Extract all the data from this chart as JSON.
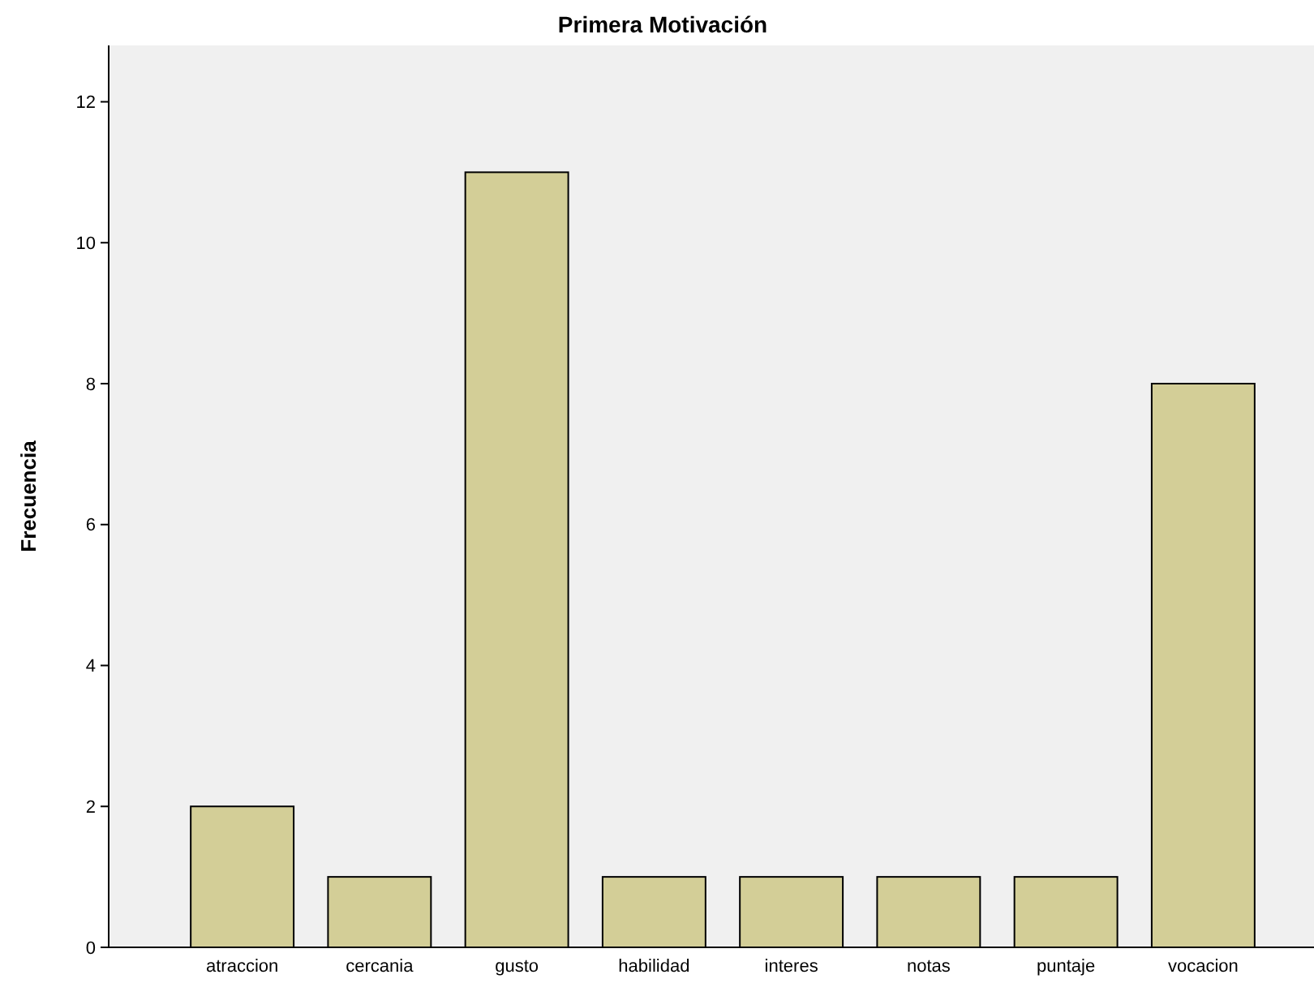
{
  "chart_data": {
    "type": "bar",
    "title": "Primera Motivación",
    "ylabel": "Frecuencia",
    "categories": [
      "atraccion",
      "cercania",
      "gusto",
      "habilidad",
      "interes",
      "notas",
      "puntaje",
      "vocacion"
    ],
    "values": [
      2,
      1,
      11,
      1,
      1,
      1,
      1,
      8
    ],
    "color": "#d3ce97",
    "ylim": [
      0,
      12.8
    ],
    "yticks": [
      0,
      2,
      4,
      6,
      8,
      10,
      12
    ],
    "grid": false
  }
}
